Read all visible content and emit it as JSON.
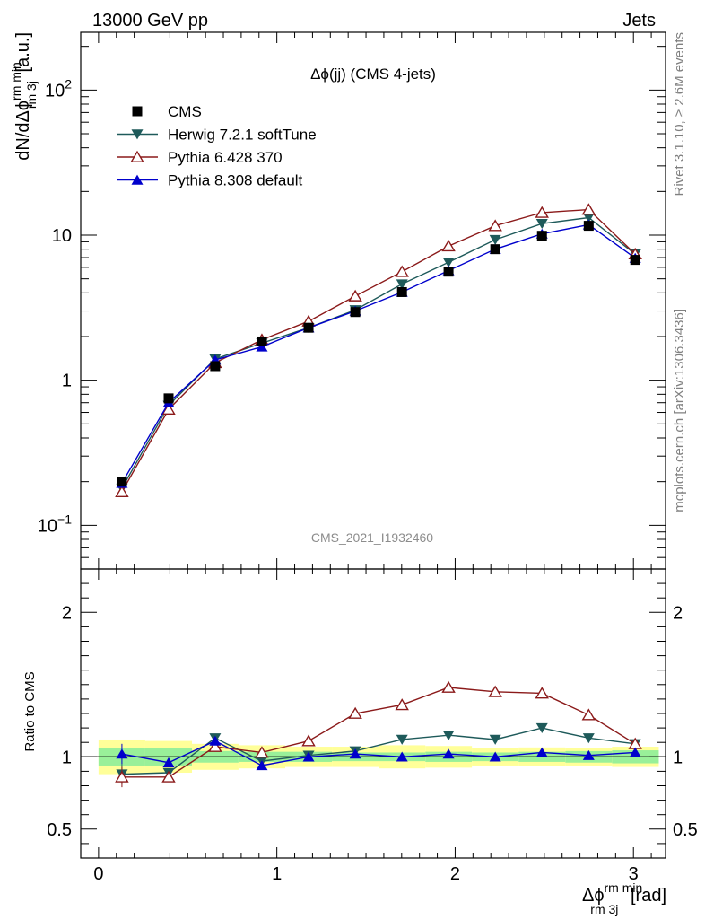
{
  "header": {
    "left": "13000 GeV pp",
    "right": "Jets"
  },
  "side_labels": {
    "rivet": "Rivet 3.1.10, ≥ 2.6M events",
    "mcplots": "mcplots.cern.ch [arXiv:1306.3436]"
  },
  "watermark": "CMS_2021_I1932460",
  "chart_data": {
    "type": "line",
    "title": "Δϕ(jj) (CMS 4-jets)",
    "ylabel": {
      "main": "dN/dΔϕ",
      "sup": "rm min",
      "sub": "rm 3j",
      "unit": " [a.u.]"
    },
    "xlabel": {
      "main": "Δϕ",
      "sup": "rm min",
      "sub": "rm 3j",
      "unit": " [rad]"
    },
    "ratio_ylabel": "Ratio to CMS",
    "xlim": [
      -0.1,
      3.18
    ],
    "ylim": [
      0.05,
      250
    ],
    "yscale": "log",
    "ratio_ylim": [
      0.3,
      2.3
    ],
    "x_ticks": [
      0,
      1,
      2,
      3
    ],
    "y_ticks": [
      {
        "value": 0.1,
        "base": "10",
        "exp": "−1"
      },
      {
        "value": 1,
        "base": "1",
        "exp": ""
      },
      {
        "value": 10,
        "base": "10",
        "exp": ""
      },
      {
        "value": 100,
        "base": "10",
        "exp": "2"
      }
    ],
    "ratio_ticks": [
      0.5,
      1,
      2
    ],
    "ratio_tick_labels": [
      "0.5",
      "1",
      "2"
    ],
    "x": [
      0.131,
      0.393,
      0.654,
      0.916,
      1.178,
      1.44,
      1.702,
      1.963,
      2.225,
      2.487,
      2.749,
      3.01
    ],
    "bin_edges": [
      0.0,
      0.262,
      0.524,
      0.785,
      1.047,
      1.309,
      1.571,
      1.833,
      2.094,
      2.356,
      2.618,
      2.88,
      3.142
    ],
    "data": {
      "name": "CMS",
      "values": [
        0.2,
        0.75,
        1.25,
        1.85,
        2.3,
        2.95,
        4.05,
        5.6,
        8.0,
        9.9,
        11.6,
        6.75
      ],
      "stat_band": [
        0.06,
        0.06,
        0.04,
        0.035,
        0.035,
        0.03,
        0.03,
        0.035,
        0.03,
        0.035,
        0.04,
        0.045
      ],
      "total_band": [
        0.12,
        0.11,
        0.09,
        0.08,
        0.07,
        0.07,
        0.08,
        0.075,
        0.06,
        0.065,
        0.06,
        0.07
      ]
    },
    "series": [
      {
        "name": "Herwig 7.2.1 softTune",
        "color": "#1e5a5a",
        "marker": "triangle-down",
        "values": [
          0.18,
          0.67,
          1.4,
          1.8,
          2.3,
          3.05,
          4.6,
          6.5,
          9.3,
          12.0,
          13.2,
          7.4
        ],
        "ratio": [
          0.88,
          0.89,
          1.13,
          0.97,
          1.01,
          1.04,
          1.12,
          1.15,
          1.12,
          1.2,
          1.13,
          1.09
        ]
      },
      {
        "name": "Pythia 6.428 370",
        "color": "#8b1a1a",
        "marker": "triangle-up-open",
        "values": [
          0.17,
          0.63,
          1.32,
          1.9,
          2.55,
          3.8,
          5.6,
          8.4,
          11.6,
          14.3,
          15.0,
          7.4
        ],
        "ratio": [
          0.86,
          0.86,
          1.07,
          1.03,
          1.11,
          1.3,
          1.36,
          1.48,
          1.45,
          1.44,
          1.29,
          1.09
        ]
      },
      {
        "name": "Pythia 8.308 default",
        "color": "#0000cc",
        "marker": "triangle-up",
        "values": [
          0.195,
          0.7,
          1.38,
          1.7,
          2.3,
          3.0,
          4.05,
          5.7,
          8.0,
          10.2,
          11.8,
          6.95
        ],
        "ratio": [
          1.02,
          0.96,
          1.11,
          0.94,
          1.0,
          1.02,
          1.0,
          1.02,
          1.0,
          1.03,
          1.01,
          1.03
        ]
      }
    ],
    "ratio_errors": [
      0.07,
      0.03,
      0.03,
      0.03,
      0.02,
      0.02,
      0.02,
      0.02,
      0.02,
      0.02,
      0.02,
      0.02
    ]
  }
}
